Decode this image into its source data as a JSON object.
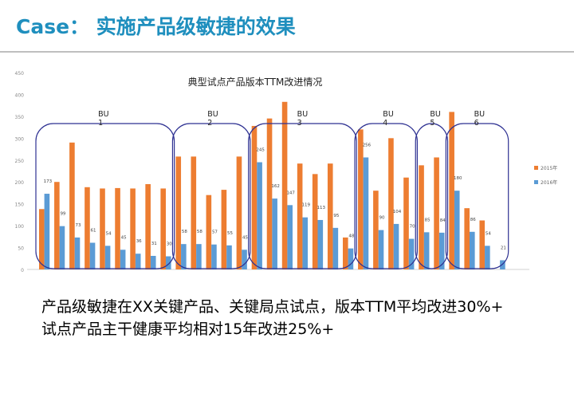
{
  "slide": {
    "title": "Case： 实施产品级敏捷的效果",
    "lines": [
      "产品级敏捷在XX关键产品、关键局点试点，版本TTM平均改进30%+",
      "试点产品主干健康平均相对15年改进25%+"
    ]
  },
  "chart_data": {
    "type": "bar",
    "title": "典型试点产品版本TTM改进情况",
    "ylim": [
      0,
      450
    ],
    "yticks": [
      0,
      50,
      100,
      150,
      200,
      250,
      300,
      350,
      400,
      450
    ],
    "legend_position": "right",
    "series": [
      {
        "name": "2015年",
        "color": "#ed7d31",
        "values": [
          138,
          200,
          290,
          188,
          185,
          186,
          185,
          195,
          185,
          258,
          258,
          170,
          182,
          258,
          328,
          345,
          383,
          242,
          218,
          242,
          73,
          320,
          180,
          300,
          210,
          238,
          256,
          360,
          140,
          112,
          0
        ]
      },
      {
        "name": "2016年",
        "color": "#5b9bd5",
        "values": [
          173,
          99,
          73,
          61,
          54,
          45,
          36,
          31,
          30,
          58,
          58,
          57,
          55,
          45,
          245,
          162,
          147,
          119,
          113,
          95,
          48,
          256,
          90,
          104,
          70,
          85,
          84,
          180,
          86,
          54,
          21
        ]
      }
    ],
    "groups": [
      {
        "label": "BU",
        "num": "1",
        "start": 0,
        "end": 8
      },
      {
        "label": "BU",
        "num": "2",
        "start": 9,
        "end": 13
      },
      {
        "label": "BU",
        "num": "3",
        "start": 14,
        "end": 20
      },
      {
        "label": "BU",
        "num": "4",
        "start": 21,
        "end": 24
      },
      {
        "label": "BU",
        "num": "5",
        "start": 25,
        "end": 26
      },
      {
        "label": "BU",
        "num": "6",
        "start": 27,
        "end": 30
      }
    ]
  }
}
